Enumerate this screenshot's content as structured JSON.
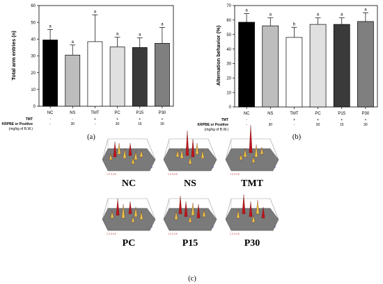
{
  "colors": {
    "NC": "#000000",
    "NS": "#bdbdbd",
    "TMT": "#ffffff",
    "PC": "#e0e0e0",
    "P15": "#3a3a3a",
    "P30": "#7f7f7f",
    "track_floor": "#7a7a7a",
    "peak_red": "#c0141a",
    "peak_yellow": "#e8c64a"
  },
  "chart_data": [
    {
      "type": "bar",
      "panel_label": "(a)",
      "categories": [
        "NC",
        "NS",
        "TMT",
        "PC",
        "P15",
        "P30"
      ],
      "values": [
        39.5,
        30.5,
        38.5,
        35.3,
        35,
        37.5
      ],
      "errors": [
        6.2,
        6.0,
        16.0,
        5.8,
        5.8,
        9.5
      ],
      "significance": [
        "a",
        "a",
        "a",
        "a",
        "a",
        "a"
      ],
      "ylabel": "Total arm entries (n)",
      "ylim": [
        0,
        60
      ],
      "yticks": [
        "0",
        "10",
        "20",
        "30",
        "40",
        "50",
        "60"
      ],
      "condition_rows": [
        {
          "label": "TMT",
          "values": [
            "-",
            "-",
            "+",
            "+",
            "+",
            "+"
          ]
        },
        {
          "label": "KRPBE or Positive",
          "values": [
            "-",
            "30",
            "-",
            "30",
            "15",
            "30"
          ]
        },
        {
          "label": "(mg/kg of B.W.)",
          "values": [
            "",
            "",
            "",
            "",
            "",
            ""
          ]
        }
      ]
    },
    {
      "type": "bar",
      "panel_label": "(b)",
      "categories": [
        "NC",
        "NS",
        "TMT",
        "PC",
        "P15",
        "P30"
      ],
      "values": [
        58.5,
        56,
        48,
        57,
        57,
        59
      ],
      "errors": [
        6,
        5.5,
        7,
        4.5,
        4.5,
        6
      ],
      "significance": [
        "a",
        "a",
        "b",
        "a",
        "a",
        "a"
      ],
      "ylabel": "Alternation behavior (%)",
      "ylim": [
        0,
        70
      ],
      "yticks": [
        "0",
        "10",
        "20",
        "30",
        "40",
        "50",
        "60",
        "70"
      ],
      "condition_rows": [
        {
          "label": "TMT",
          "values": [
            "-",
            "-",
            "+",
            "+",
            "+",
            "+"
          ]
        },
        {
          "label": "KRPBE or Positive",
          "values": [
            "-",
            "30",
            "-",
            "30",
            "15",
            "30"
          ]
        },
        {
          "label": "(mg/kg of B.W.)",
          "values": [
            "",
            "",
            "",
            "",
            "",
            ""
          ]
        }
      ]
    }
  ],
  "tracks": {
    "panel_label": "(c)",
    "labels": [
      "NC",
      "NS",
      "TMT",
      "PC",
      "P15",
      "P30"
    ]
  }
}
